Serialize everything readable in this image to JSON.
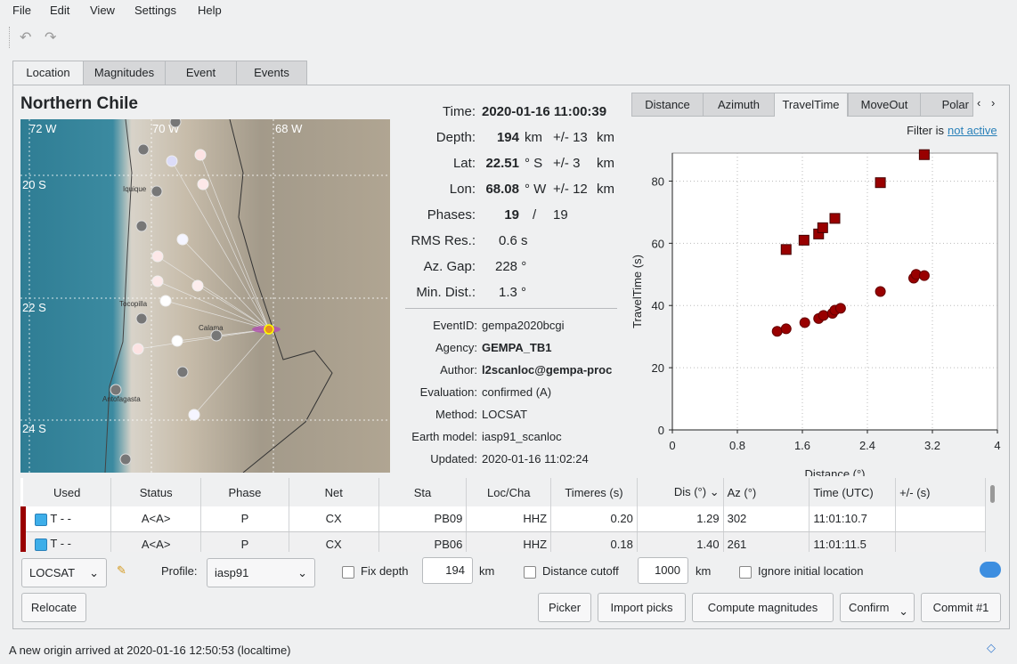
{
  "menu": [
    "File",
    "Edit",
    "View",
    "Settings",
    "Help"
  ],
  "toolbar": {
    "undo_icon": "undo-icon",
    "redo_icon": "redo-icon"
  },
  "tabs": [
    "Location",
    "Magnitudes",
    "Event",
    "Events"
  ],
  "region": "Northern Chile",
  "map": {
    "lon_labels": [
      "72 W",
      "70 W",
      "68 W"
    ],
    "lat_labels": [
      "20 S",
      "22 S",
      "24 S"
    ],
    "cities": [
      "Iquique",
      "Tocopilla",
      "Calama",
      "Antofagasta"
    ]
  },
  "origin": {
    "time_label": "Time:",
    "time": "2020-01-16 11:00:39",
    "depth_label": "Depth:",
    "depth": "194",
    "depth_unit": "km",
    "depth_pm": "+/- 13",
    "depth_unit2": "km",
    "lat_label": "Lat:",
    "lat": "22.51",
    "lat_unit": "° S",
    "lat_pm": "+/- 3",
    "lat_unit2": "km",
    "lon_label": "Lon:",
    "lon": "68.08",
    "lon_unit": "° W",
    "lon_pm": "+/- 12",
    "lon_unit2": "km",
    "phases_label": "Phases:",
    "phases": "19",
    "phases_sep": "/",
    "phases_total": "19",
    "rms_label": "RMS Res.:",
    "rms": "0.6 s",
    "gap_label": "Az. Gap:",
    "gap": "228 °",
    "mindist_label": "Min. Dist.:",
    "mindist": "1.3 °"
  },
  "info": [
    {
      "label": "EventID:",
      "value": "gempa2020bcgi",
      "bold": false
    },
    {
      "label": "Agency:",
      "value": "GEMPA_TB1",
      "bold": true
    },
    {
      "label": "Author:",
      "value": "l2scanloc@gempa-proc",
      "bold": true
    },
    {
      "label": "Evaluation:",
      "value": "confirmed (A)",
      "bold": false
    },
    {
      "label": "Method:",
      "value": "LOCSAT",
      "bold": false
    },
    {
      "label": "Earth model:",
      "value": "iasp91_scanloc",
      "bold": false
    },
    {
      "label": "Updated:",
      "value": "2020-01-16 11:02:24",
      "bold": false
    }
  ],
  "plot_tabs": [
    "Distance",
    "Azimuth",
    "TravelTime",
    "MoveOut",
    "Polar"
  ],
  "filter": {
    "label": "Filter is",
    "link": "not active"
  },
  "chart_data": {
    "type": "scatter",
    "xlabel": "Distance (°)",
    "ylabel": "TravelTime (s)",
    "xlim": [
      0,
      4
    ],
    "ylim": [
      0,
      89
    ],
    "xticks": [
      "0",
      "0.8",
      "1.6",
      "2.4",
      "3.2",
      "4"
    ],
    "yticks": [
      "0",
      "20",
      "40",
      "60",
      "80"
    ],
    "grid": true,
    "series": [
      {
        "marker": "circle",
        "color": "#990000",
        "x": [
          1.29,
          1.4,
          1.63,
          1.8,
          1.86,
          1.97,
          2.0,
          2.07,
          2.56,
          2.97,
          3.0,
          3.1
        ],
        "y": [
          31.7,
          32.5,
          34.5,
          35.8,
          36.8,
          37.5,
          38.5,
          39.1,
          44.5,
          48.8,
          50.0,
          49.6
        ]
      },
      {
        "marker": "square",
        "color": "#990000",
        "x": [
          1.4,
          1.62,
          1.8,
          1.85,
          2.0,
          2.56,
          3.1
        ],
        "y": [
          58,
          61,
          63,
          65,
          68,
          79.5,
          88.5
        ]
      }
    ]
  },
  "table": {
    "headers": [
      "Used",
      "Status",
      "Phase",
      "Net",
      "Sta",
      "Loc/Cha",
      "Timeres (s)",
      "Dis (°)",
      "Az (°)",
      "Time (UTC)",
      "+/- (s)"
    ],
    "rows": [
      [
        "T  -  -",
        "A<A>",
        "P",
        "CX",
        "PB09",
        "HHZ",
        "0.20",
        "1.29",
        "302",
        "11:01:10.7",
        ""
      ],
      [
        "T  -  -",
        "A<A>",
        "P",
        "CX",
        "PB06",
        "HHZ",
        "0.18",
        "1.40",
        "261",
        "11:01:11.5",
        ""
      ]
    ]
  },
  "controls": {
    "locator": "LOCSAT",
    "profile_label": "Profile:",
    "profile": "iasp91",
    "fix_depth": "Fix depth",
    "depth_value": "194",
    "km1": "km",
    "dist_cutoff": "Distance cutoff",
    "dist_value": "1000",
    "km2": "km",
    "ignore": "Ignore initial location"
  },
  "buttons": {
    "relocate": "Relocate",
    "picker": "Picker",
    "import": "Import picks",
    "compute": "Compute magnitudes",
    "confirm": "Confirm",
    "commit": "Commit #1"
  },
  "status": "A new origin arrived at 2020-01-16 12:50:53 (localtime)"
}
